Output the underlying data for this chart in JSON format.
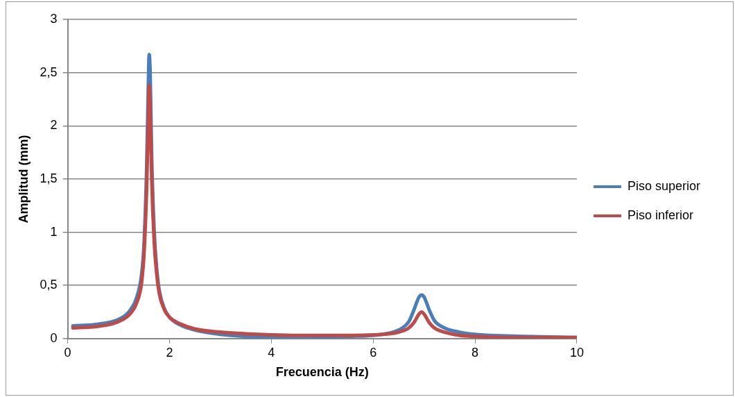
{
  "chart_data": {
    "type": "line",
    "xlabel": "Frecuencia (Hz)",
    "ylabel": "Amplitud (mm)",
    "xlim": [
      0,
      10
    ],
    "xticks": [
      0,
      2,
      4,
      6,
      8,
      10
    ],
    "ylim": [
      0,
      3
    ],
    "yticks": [
      {
        "value": 0,
        "label": "0"
      },
      {
        "value": 0.5,
        "label": "0,5"
      },
      {
        "value": 1,
        "label": "1"
      },
      {
        "value": 1.5,
        "label": "1,5"
      },
      {
        "value": 2,
        "label": "2"
      },
      {
        "value": 2.5,
        "label": "2,5"
      },
      {
        "value": 3,
        "label": "3"
      }
    ],
    "grid": "y",
    "legend": "right",
    "marker": "none",
    "line_style": "solid",
    "x": [
      0.1,
      0.5,
      0.8,
      1.0,
      1.2,
      1.35,
      1.45,
      1.5,
      1.55,
      1.58,
      1.6,
      1.62,
      1.65,
      1.7,
      1.75,
      1.8,
      1.9,
      2.0,
      2.2,
      2.5,
      3,
      3.5,
      4,
      4.5,
      5,
      5.5,
      6,
      6.3,
      6.5,
      6.7,
      6.8,
      6.9,
      6.95,
      7.0,
      7.1,
      7.2,
      7.4,
      7.7,
      8,
      9,
      10
    ],
    "series": [
      {
        "name": "Piso superior",
        "color": "#4a7ebb",
        "values": [
          0.12,
          0.13,
          0.15,
          0.18,
          0.25,
          0.38,
          0.6,
          0.9,
          1.6,
          2.3,
          2.67,
          2.5,
          1.7,
          1.0,
          0.65,
          0.45,
          0.28,
          0.2,
          0.13,
          0.08,
          0.04,
          0.02,
          0.01,
          0.0,
          0.01,
          0.02,
          0.03,
          0.05,
          0.08,
          0.16,
          0.27,
          0.39,
          0.41,
          0.39,
          0.27,
          0.17,
          0.1,
          0.06,
          0.04,
          0.02,
          0.01
        ]
      },
      {
        "name": "Piso inferior",
        "color": "#be4b48",
        "values": [
          0.1,
          0.11,
          0.13,
          0.16,
          0.22,
          0.33,
          0.52,
          0.8,
          1.4,
          2.0,
          2.38,
          2.2,
          1.5,
          0.9,
          0.6,
          0.42,
          0.27,
          0.2,
          0.14,
          0.09,
          0.06,
          0.045,
          0.035,
          0.03,
          0.03,
          0.03,
          0.035,
          0.045,
          0.06,
          0.1,
          0.15,
          0.23,
          0.25,
          0.23,
          0.15,
          0.1,
          0.06,
          0.03,
          0.02,
          0.01,
          0.01
        ]
      }
    ]
  }
}
